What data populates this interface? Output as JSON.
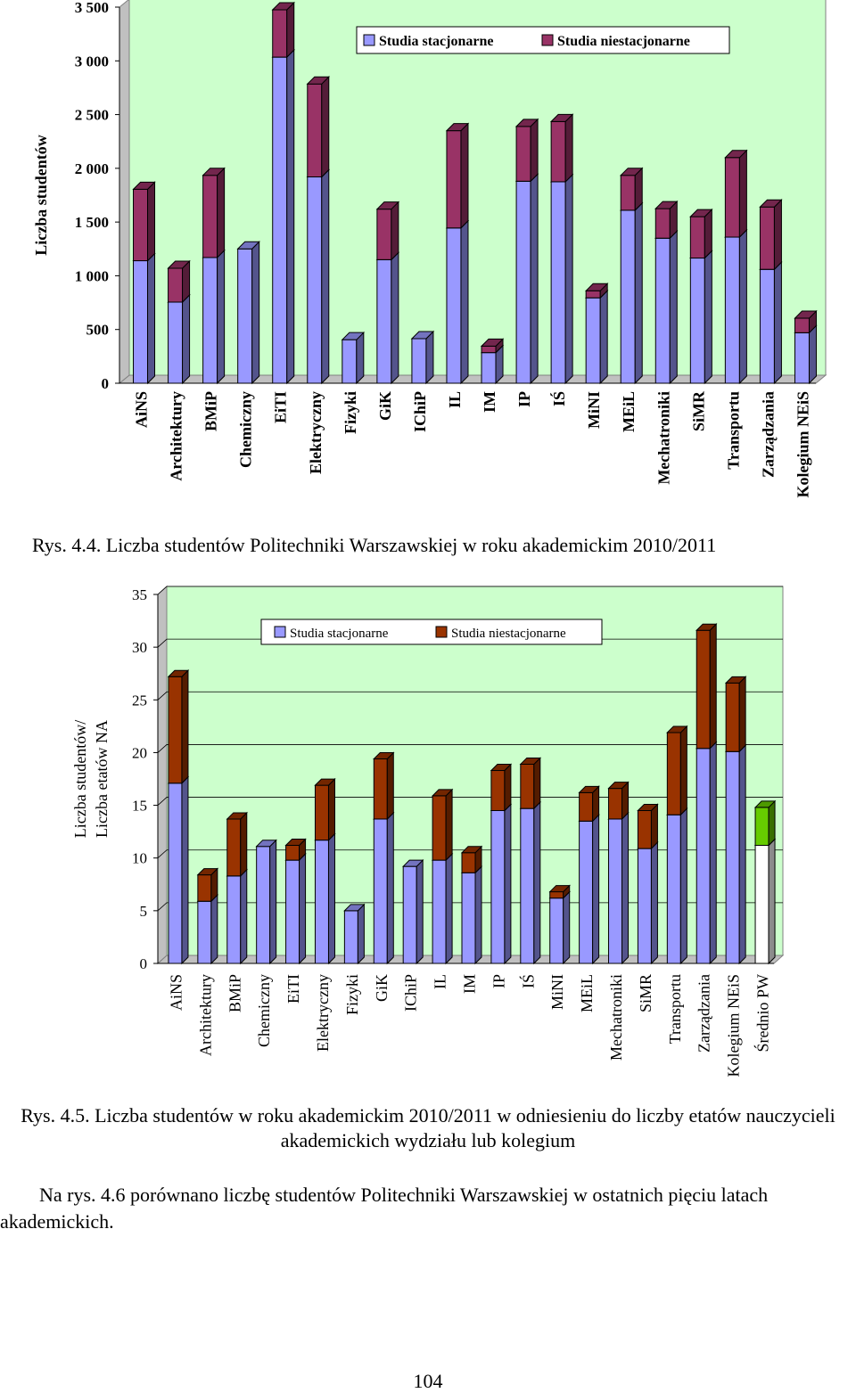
{
  "chart_data": [
    {
      "type": "bar",
      "stacked": true,
      "title": "",
      "xlabel": "",
      "ylabel": "Liczba studentów",
      "ylim": [
        0,
        3500
      ],
      "yticks": [
        0,
        500,
        1000,
        1500,
        2000,
        2500,
        3000,
        3500
      ],
      "ytick_labels": [
        "0",
        "500",
        "1 000",
        "1 500",
        "2 000",
        "2 500",
        "3 000",
        "3 500"
      ],
      "grid": false,
      "legend_position": "top-right",
      "categories": [
        "AiNS",
        "Architektury",
        "BMiP",
        "Chemiczny",
        "EiTI",
        "Elektryczny",
        "Fizyki",
        "GiK",
        "IChiP",
        "IL",
        "IM",
        "IP",
        "IŚ",
        "MiNI",
        "MEiL",
        "Mechatroniki",
        "SiMR",
        "Transportu",
        "Zarządzania",
        "Kolegium NEiS"
      ],
      "series": [
        {
          "name": "Studia stacjonarne",
          "color": "#9999ff",
          "values": [
            1140,
            755,
            1170,
            1250,
            3035,
            1920,
            405,
            1150,
            415,
            1445,
            285,
            1880,
            1875,
            795,
            1610,
            1350,
            1165,
            1360,
            1060,
            470
          ]
        },
        {
          "name": "Studia niestacjonarne",
          "color": "#993366",
          "values": [
            665,
            315,
            765,
            0,
            440,
            865,
            0,
            470,
            0,
            905,
            60,
            510,
            560,
            65,
            325,
            275,
            385,
            740,
            580,
            135
          ]
        }
      ]
    },
    {
      "type": "bar",
      "stacked": true,
      "title": "",
      "xlabel": "",
      "ylabel_lines": [
        "Liczba studentów/",
        "Liczba etatów NA"
      ],
      "ylim": [
        0,
        35
      ],
      "yticks": [
        0,
        5,
        10,
        15,
        20,
        25,
        30,
        35
      ],
      "ytick_labels": [
        "0",
        "5",
        "10",
        "15",
        "20",
        "25",
        "30",
        "35"
      ],
      "grid": true,
      "legend_position": "top-center",
      "categories": [
        "AiNS",
        "Architektury",
        "BMiP",
        "Chemiczny",
        "EiTI",
        "Elektryczny",
        "Fizyki",
        "GiK",
        "IChiP",
        "IL",
        "IM",
        "IP",
        "IŚ",
        "MiNI",
        "MEiL",
        "Mechatroniki",
        "SiMR",
        "Transportu",
        "Zarządzania",
        "Kolegium NEiS",
        "Średnio PW"
      ],
      "highlight_category": "Średnio PW",
      "highlight_colors": {
        "base": "#ffffff",
        "top": "#66cc00"
      },
      "series": [
        {
          "name": "Studia stacjonarne",
          "color": "#9999ff",
          "values": [
            17.1,
            5.9,
            8.3,
            11.1,
            9.8,
            11.7,
            5.0,
            13.7,
            9.2,
            9.8,
            8.6,
            14.5,
            14.7,
            6.2,
            13.5,
            13.7,
            10.9,
            14.1,
            20.4,
            20.1,
            11.2
          ]
        },
        {
          "name": "Studia niestacjonarne",
          "color": "#993300",
          "values": [
            10.1,
            2.5,
            5.4,
            0,
            1.4,
            5.2,
            0,
            5.7,
            0,
            6.1,
            1.9,
            3.8,
            4.2,
            0.6,
            2.7,
            2.9,
            3.6,
            7.8,
            11.2,
            6.5,
            3.6
          ]
        }
      ]
    }
  ],
  "captions": {
    "fig1": "Rys. 4.4. Liczba studentów Politechniki Warszawskiej w roku akademickim 2010/2011",
    "fig2": "Rys. 4.5. Liczba studentów w roku akademickim 2010/2011 w odniesieniu do liczby etatów nauczycieli akademickich wydziału lub kolegium"
  },
  "paragraph": "Na rys. 4.6 porównano liczbę studentów Politechniki Warszawskiej w ostatnich pięciu latach akademickich.",
  "page_number": "104"
}
